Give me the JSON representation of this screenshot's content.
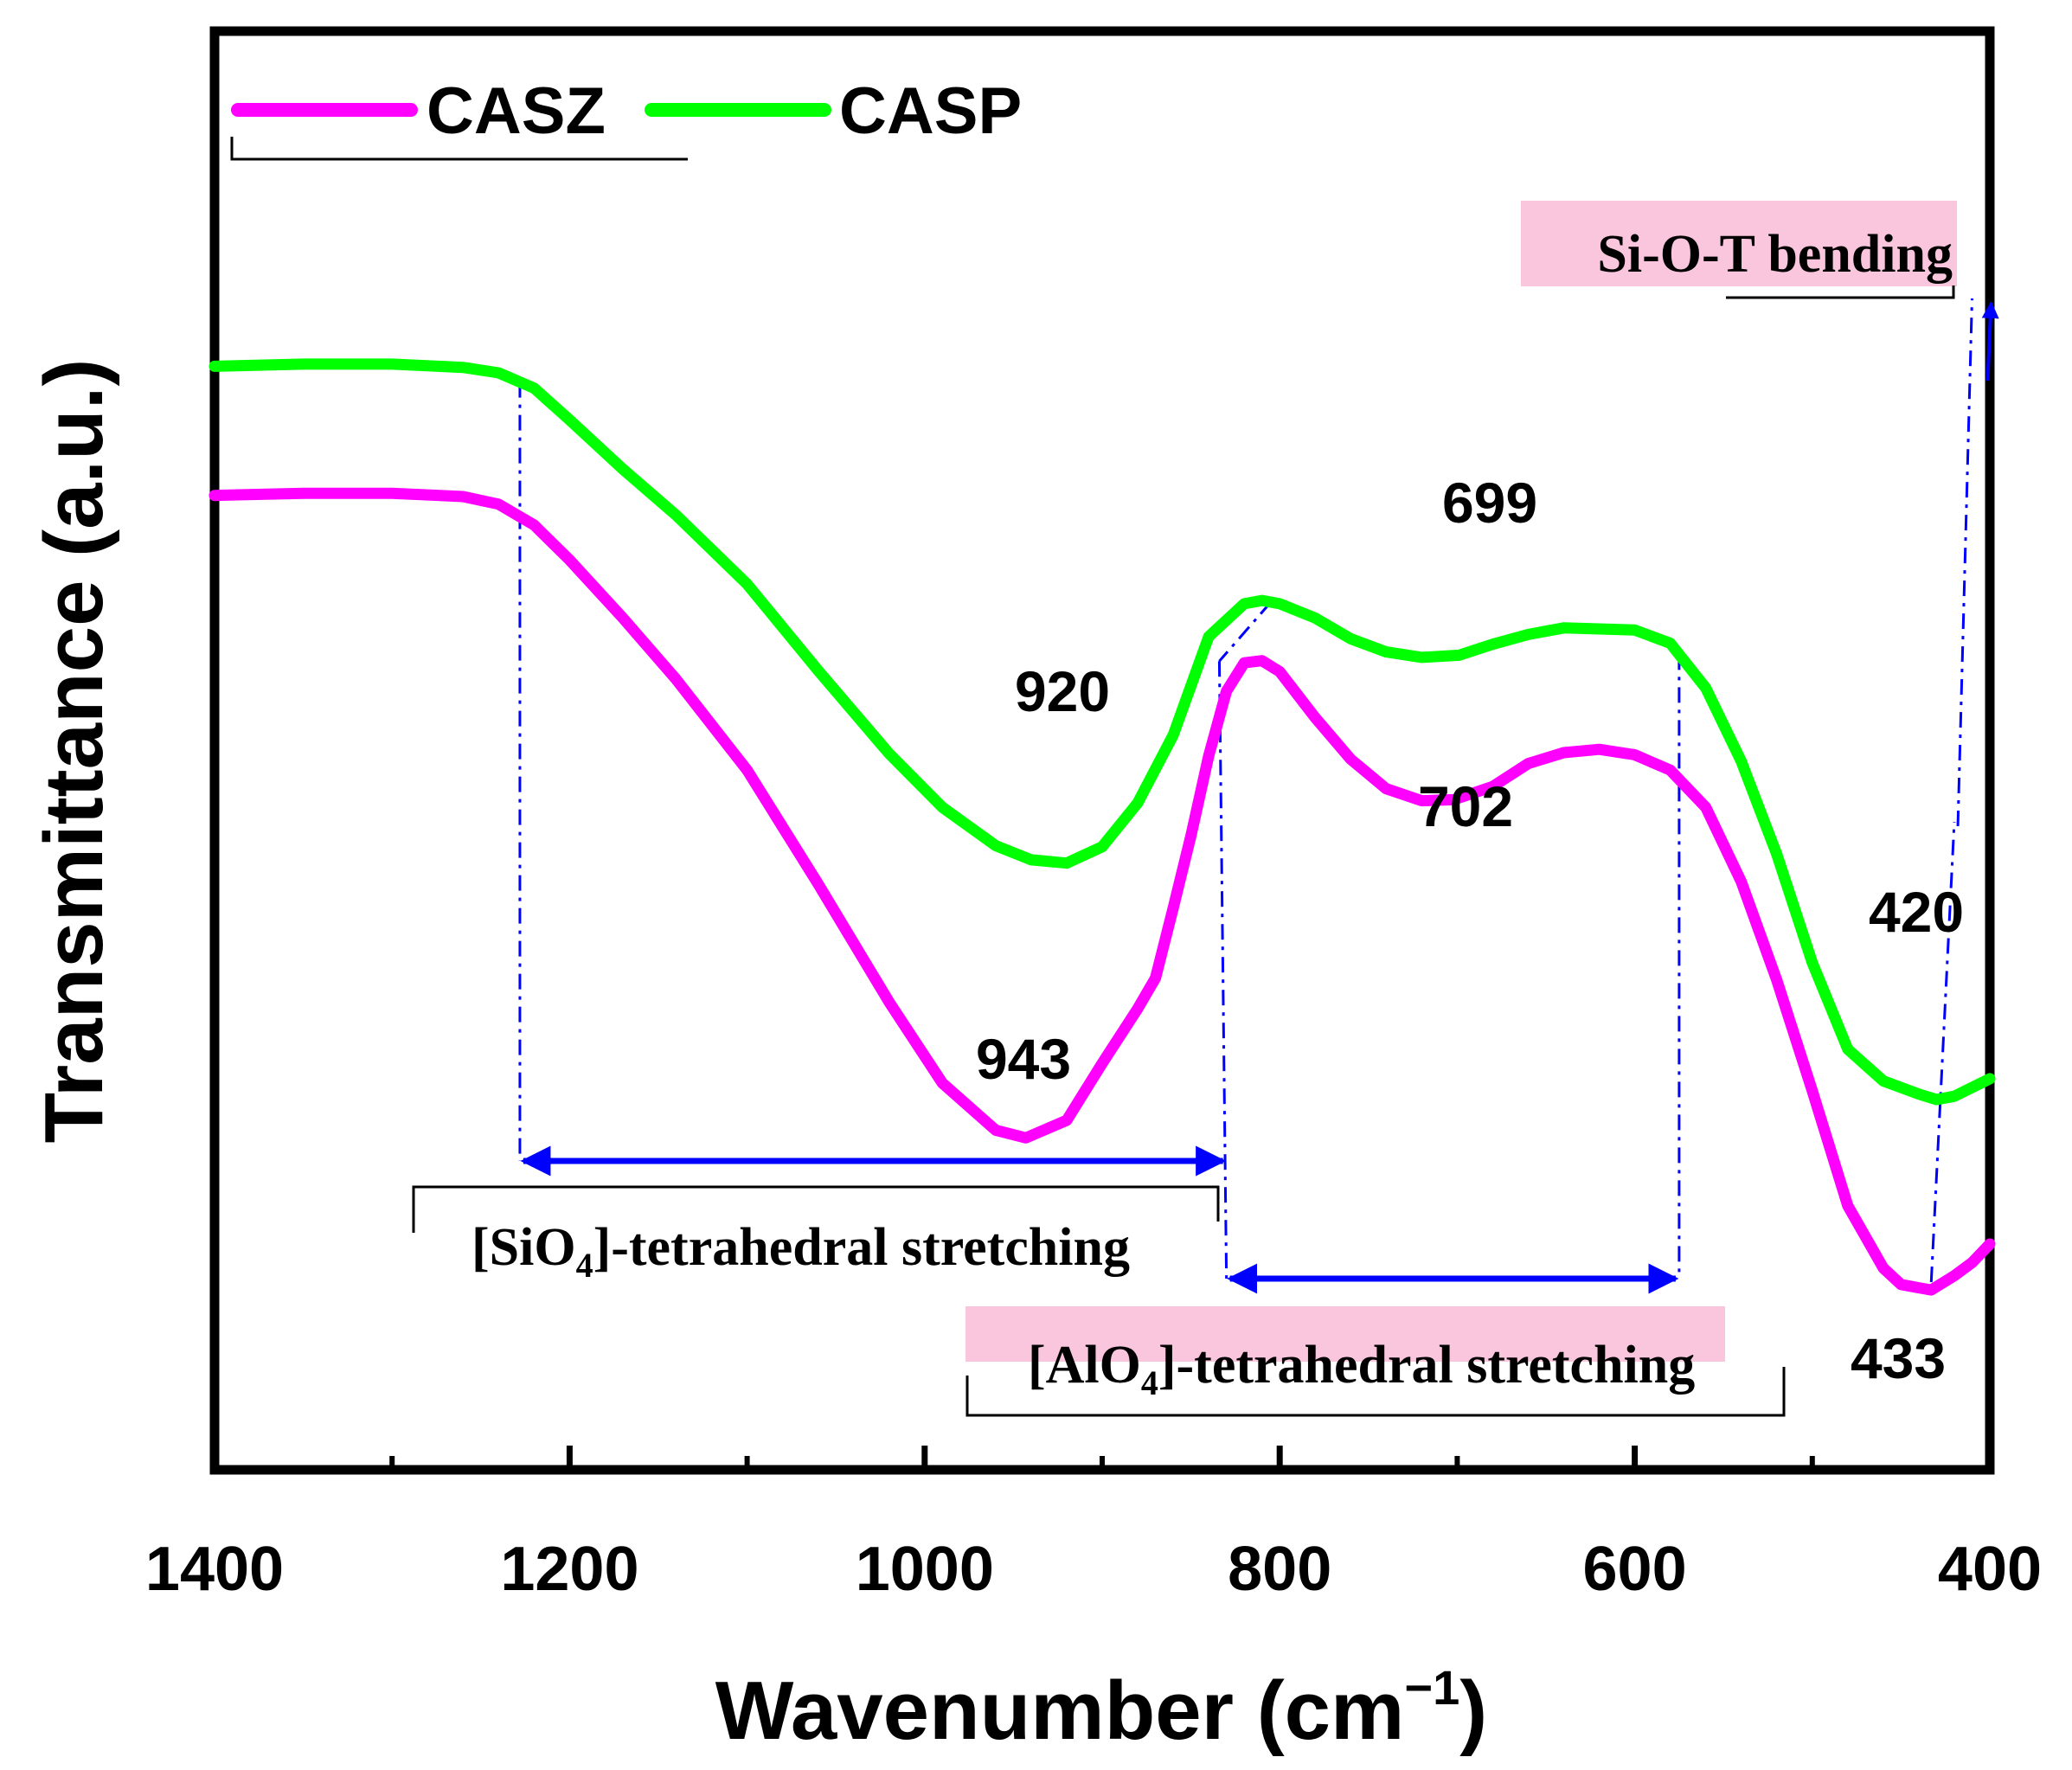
{
  "chart_data": {
    "type": "line",
    "xlabel": "Wavenumber (cm",
    "xlabel_sup": "−1",
    "xlabel_end": ")",
    "ylabel": "Transmittance (a.u.)",
    "xlim": [
      1400,
      400
    ],
    "ylim": [
      0,
      100
    ],
    "x_reversed": true,
    "grid": false,
    "legend_position": "top-left",
    "xticks": [
      1400,
      1200,
      1000,
      800,
      600,
      400
    ],
    "xtick_labels": [
      "1400",
      "1200",
      "1000",
      "800",
      "600",
      "400"
    ],
    "series": [
      {
        "name": "CASZ",
        "color": "#ff00ff",
        "x": [
          1400,
          1350,
          1300,
          1260,
          1240,
          1220,
          1200,
          1170,
          1140,
          1100,
          1060,
          1020,
          990,
          960,
          943,
          920,
          900,
          880,
          870,
          860,
          850,
          840,
          830,
          820,
          810,
          800,
          780,
          760,
          740,
          720,
          702,
          680,
          660,
          640,
          620,
          600,
          580,
          560,
          540,
          520,
          500,
          480,
          460,
          450,
          440,
          433,
          420,
          410,
          400
        ],
        "y": [
          73.7,
          73.9,
          73.9,
          73.6,
          72.9,
          71.0,
          67.8,
          62.5,
          56.9,
          48.6,
          38.2,
          27.4,
          20.0,
          15.7,
          15.0,
          16.6,
          21.8,
          26.8,
          29.6,
          36.0,
          42.6,
          49.9,
          55.8,
          58.4,
          58.6,
          57.6,
          53.4,
          49.6,
          46.9,
          45.8,
          45.9,
          47.1,
          49.2,
          50.2,
          50.5,
          50.0,
          48.6,
          45.2,
          38.4,
          29.4,
          19.3,
          8.8,
          3.1,
          1.6,
          1.3,
          1.1,
          2.4,
          3.6,
          5.3
        ]
      },
      {
        "name": "CASP",
        "color": "#00ff00",
        "x": [
          1400,
          1350,
          1300,
          1260,
          1240,
          1220,
          1200,
          1170,
          1140,
          1100,
          1060,
          1020,
          990,
          960,
          940,
          920,
          900,
          880,
          860,
          840,
          820,
          810,
          800,
          780,
          760,
          740,
          720,
          699,
          680,
          660,
          640,
          620,
          600,
          580,
          560,
          540,
          520,
          500,
          480,
          460,
          440,
          430,
          420,
          410,
          400
        ],
        "y": [
          85.5,
          85.7,
          85.7,
          85.4,
          84.9,
          83.5,
          80.6,
          76.1,
          71.9,
          65.6,
          57.7,
          50.1,
          45.2,
          41.7,
          40.4,
          40.1,
          41.6,
          45.6,
          51.8,
          60.8,
          63.8,
          64.1,
          63.8,
          62.5,
          60.6,
          59.4,
          58.9,
          59.1,
          60.1,
          61.0,
          61.6,
          61.5,
          61.4,
          60.2,
          56.1,
          49.4,
          40.9,
          31.0,
          23.1,
          20.2,
          19.0,
          18.5,
          18.8,
          19.6,
          20.4
        ]
      }
    ],
    "peak_labels": [
      {
        "text": "920",
        "x": 920,
        "y": 41
      },
      {
        "text": "943",
        "x": 943,
        "y": 15
      },
      {
        "text": "699",
        "x": 699,
        "y": 59
      },
      {
        "text": "702",
        "x": 702,
        "y": 46
      },
      {
        "text": "420",
        "x": 420,
        "y": 18.5
      },
      {
        "text": "433",
        "x": 433,
        "y": 1.3
      }
    ],
    "annotations": [
      {
        "key": "si",
        "text_before": "[SiO",
        "sub": "4",
        "text_after": "]-tetrahedral stretching"
      },
      {
        "key": "al",
        "text_before": "[AlO",
        "sub": "4",
        "text_after": "]-tetrahedral stretching"
      },
      {
        "key": "bend",
        "text": "Si-O-T bending"
      }
    ],
    "colors": {
      "casz": "#ff00ff",
      "casp": "#00ff00",
      "guide": "#0000ff",
      "highlight": "#f9c6dd"
    }
  }
}
